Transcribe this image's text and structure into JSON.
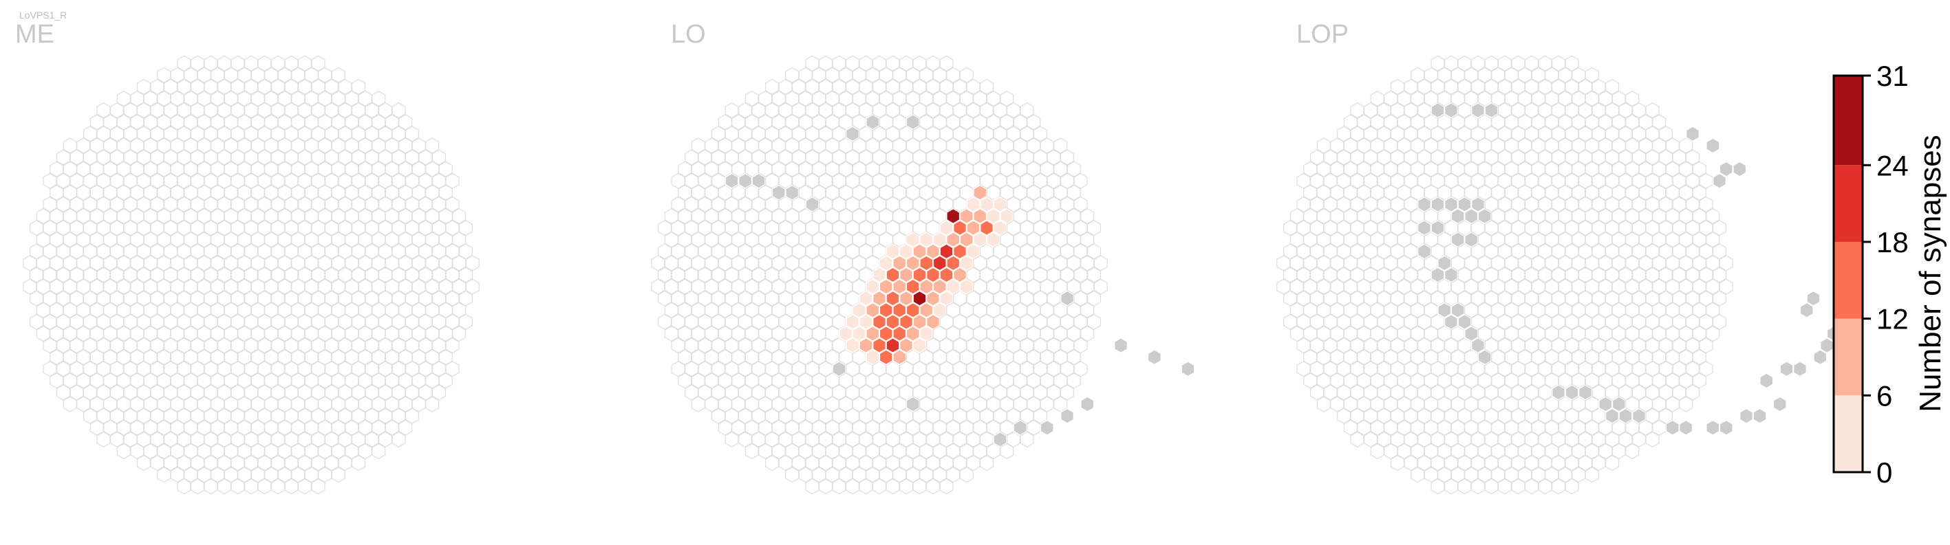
{
  "cell_type_label": "LoVPS1_R",
  "colors": {
    "empty_outline": "#dedede",
    "no_data_fill": "#cccccc",
    "scale": [
      "#fde7dd",
      "#fcb49a",
      "#fb7050",
      "#e0322b",
      "#a50f15"
    ]
  },
  "chart_data": {
    "type": "heatmap",
    "description": "Hexagonal eye-map of synapse counts per column in three neuropils",
    "colorbar": {
      "label": "Number of synapses",
      "ticks": [
        0,
        6,
        12,
        18,
        24,
        31
      ],
      "range": [
        0,
        31
      ],
      "bins": [
        [
          0,
          6
        ],
        [
          6,
          12
        ],
        [
          12,
          18
        ],
        [
          18,
          24
        ],
        [
          24,
          31
        ]
      ]
    },
    "panels": [
      {
        "name": "ME",
        "cells": [],
        "no_data": []
      },
      {
        "name": "LO",
        "cells": [
          [
            -5,
            5,
            4
          ],
          [
            -5,
            6,
            4
          ],
          [
            -4,
            4,
            4
          ],
          [
            -4,
            5,
            4
          ],
          [
            -4,
            6,
            8
          ],
          [
            -4,
            7,
            4
          ],
          [
            -3,
            3,
            4
          ],
          [
            -3,
            4,
            4
          ],
          [
            -3,
            5,
            10
          ],
          [
            -3,
            6,
            16
          ],
          [
            -3,
            7,
            12
          ],
          [
            -2,
            2,
            4
          ],
          [
            -2,
            3,
            8
          ],
          [
            -2,
            4,
            14
          ],
          [
            -2,
            5,
            12
          ],
          [
            -2,
            6,
            18
          ],
          [
            -2,
            7,
            10
          ],
          [
            -1,
            1,
            4
          ],
          [
            -1,
            2,
            10
          ],
          [
            -1,
            3,
            12
          ],
          [
            -1,
            4,
            16
          ],
          [
            -1,
            5,
            15
          ],
          [
            -1,
            6,
            10
          ],
          [
            0,
            0,
            3
          ],
          [
            0,
            1,
            10
          ],
          [
            0,
            2,
            13
          ],
          [
            0,
            3,
            14
          ],
          [
            0,
            4,
            12
          ],
          [
            0,
            5,
            8
          ],
          [
            0,
            6,
            4
          ],
          [
            1,
            -1,
            4
          ],
          [
            1,
            0,
            12
          ],
          [
            1,
            1,
            10
          ],
          [
            1,
            2,
            8
          ],
          [
            1,
            3,
            13
          ],
          [
            1,
            4,
            9
          ],
          [
            1,
            5,
            5
          ],
          [
            2,
            -2,
            4
          ],
          [
            2,
            -1,
            8
          ],
          [
            2,
            0,
            11
          ],
          [
            2,
            1,
            14
          ],
          [
            2,
            2,
            26
          ],
          [
            2,
            3,
            10
          ],
          [
            2,
            4,
            6
          ],
          [
            3,
            -2,
            4
          ],
          [
            3,
            -1,
            8
          ],
          [
            3,
            0,
            16
          ],
          [
            3,
            1,
            9
          ],
          [
            3,
            2,
            6
          ],
          [
            3,
            3,
            4
          ],
          [
            4,
            -3,
            5
          ],
          [
            4,
            -2,
            10
          ],
          [
            4,
            -1,
            12
          ],
          [
            4,
            0,
            15
          ],
          [
            4,
            1,
            6
          ],
          [
            4,
            2,
            4
          ],
          [
            5,
            -3,
            4
          ],
          [
            5,
            -2,
            9
          ],
          [
            5,
            -1,
            22
          ],
          [
            5,
            0,
            12
          ],
          [
            5,
            1,
            5
          ],
          [
            6,
            -3,
            4
          ],
          [
            6,
            -2,
            20
          ],
          [
            6,
            -1,
            14
          ],
          [
            6,
            0,
            8
          ],
          [
            6,
            1,
            4
          ],
          [
            7,
            -4,
            4
          ],
          [
            7,
            -3,
            9
          ],
          [
            7,
            -2,
            16
          ],
          [
            7,
            -1,
            4
          ],
          [
            8,
            -5,
            28
          ],
          [
            8,
            -4,
            14
          ],
          [
            8,
            -3,
            6
          ],
          [
            8,
            -2,
            4
          ],
          [
            9,
            -5,
            10
          ],
          [
            9,
            -4,
            6
          ],
          [
            9,
            -3,
            4
          ],
          [
            10,
            -6,
            4
          ],
          [
            10,
            -5,
            9
          ],
          [
            10,
            -4,
            12
          ],
          [
            10,
            -3,
            4
          ],
          [
            11,
            -7,
            8
          ],
          [
            11,
            -6,
            4
          ],
          [
            11,
            -5,
            4
          ],
          [
            11,
            -4,
            4
          ],
          [
            12,
            -6,
            4
          ],
          [
            12,
            -5,
            4
          ]
        ],
        "no_data": [
          [
            -7,
            -8
          ],
          [
            -6,
            -8
          ],
          [
            -5,
            -8
          ],
          [
            -4,
            -7
          ],
          [
            -3,
            -7
          ],
          [
            -2,
            -6
          ],
          [
            4,
            -12
          ],
          [
            6,
            -13
          ],
          [
            9,
            -13
          ],
          [
            -7,
            8
          ],
          [
            -3,
            11
          ],
          [
            13,
            2
          ],
          [
            15,
            6
          ],
          [
            17,
            7
          ],
          [
            19,
            8
          ],
          [
            2,
            14
          ],
          [
            4,
            13
          ],
          [
            6,
            13
          ],
          [
            8,
            12
          ],
          [
            10,
            11
          ]
        ]
      },
      {
        "name": "LOP",
        "cells": [],
        "no_data": [
          [
            2,
            -14
          ],
          [
            3,
            -14
          ],
          [
            5,
            -14
          ],
          [
            6,
            -14
          ],
          [
            -3,
            -6
          ],
          [
            -2,
            -6
          ],
          [
            -1,
            -6
          ],
          [
            -1,
            -5
          ],
          [
            0,
            -6
          ],
          [
            0,
            -5
          ],
          [
            1,
            -6
          ],
          [
            1,
            -5
          ],
          [
            -4,
            -4
          ],
          [
            -3,
            -4
          ],
          [
            -2,
            -3
          ],
          [
            -1,
            -3
          ],
          [
            -5,
            -2
          ],
          [
            -4,
            -1
          ],
          [
            -5,
            0
          ],
          [
            -4,
            0
          ],
          [
            -6,
            3
          ],
          [
            -5,
            3
          ],
          [
            -5,
            4
          ],
          [
            -6,
            4
          ],
          [
            -5,
            5
          ],
          [
            -5,
            6
          ],
          [
            -5,
            7
          ],
          [
            -1,
            10
          ],
          [
            0,
            10
          ],
          [
            1,
            10
          ],
          [
            2,
            11
          ],
          [
            2,
            12
          ],
          [
            3,
            12
          ],
          [
            3,
            11
          ],
          [
            4,
            12
          ],
          [
            6,
            13
          ],
          [
            7,
            13
          ],
          [
            9,
            13
          ],
          [
            10,
            13
          ],
          [
            12,
            12
          ],
          [
            13,
            12
          ],
          [
            15,
            11
          ],
          [
            15,
            9
          ],
          [
            17,
            8
          ],
          [
            18,
            8
          ],
          [
            20,
            7
          ],
          [
            21,
            6
          ],
          [
            22,
            5
          ],
          [
            21,
            3
          ],
          [
            22,
            2
          ],
          [
            23,
            1
          ],
          [
            24,
            0
          ],
          [
            24,
            -1
          ],
          [
            23,
            -4
          ],
          [
            24,
            -5
          ],
          [
            24,
            -6
          ],
          [
            25,
            -6
          ],
          [
            24,
            -7
          ],
          [
            25,
            -8
          ],
          [
            20,
            -8
          ],
          [
            21,
            -9
          ],
          [
            22,
            -9
          ],
          [
            23,
            -10
          ],
          [
            21,
            -11
          ],
          [
            20,
            -12
          ]
        ]
      }
    ]
  }
}
